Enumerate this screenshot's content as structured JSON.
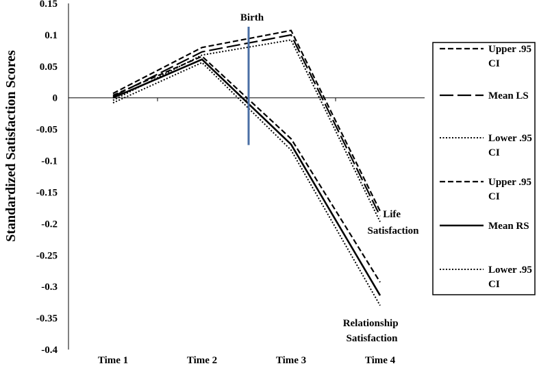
{
  "chart_data": {
    "type": "line",
    "categories": [
      "Time 1",
      "Time 2",
      "Time 3",
      "Time 4"
    ],
    "ylabel": "Standardized Satisfaction Scores",
    "ylim": [
      -0.4,
      0.15
    ],
    "yticks": [
      "0.15",
      "0.1",
      "0.05",
      "0",
      "-0.05",
      "-0.1",
      "-0.15",
      "-0.2",
      "-0.25",
      "-0.3",
      "-0.35",
      "-0.4"
    ],
    "ytick_values": [
      0.15,
      0.1,
      0.05,
      0,
      -0.05,
      -0.1,
      -0.15,
      -0.2,
      -0.25,
      -0.3,
      -0.35,
      -0.4
    ],
    "series": [
      {
        "name": "Upper .95 CI",
        "name_lines": [
          "Upper .95",
          "CI"
        ],
        "group": "LS",
        "style": "dash-short",
        "values": [
          0.007,
          0.08,
          0.107,
          -0.18
        ]
      },
      {
        "name": "Mean LS",
        "name_lines": [
          "Mean LS"
        ],
        "group": "LS",
        "style": "dash-long",
        "values": [
          0.002,
          0.073,
          0.1,
          -0.188
        ]
      },
      {
        "name": "Lower .95 CI",
        "name_lines": [
          "Lower .95",
          "CI"
        ],
        "group": "LS",
        "style": "dotted",
        "values": [
          -0.004,
          0.068,
          0.092,
          -0.197
        ]
      },
      {
        "name": "Upper .95 CI",
        "name_lines": [
          "Upper .95",
          "CI"
        ],
        "group": "RS",
        "style": "dash-short",
        "values": [
          0.004,
          0.066,
          -0.065,
          -0.293
        ]
      },
      {
        "name": "Mean RS",
        "name_lines": [
          "Mean RS"
        ],
        "group": "RS",
        "style": "solid",
        "values": [
          0.0,
          0.061,
          -0.074,
          -0.314
        ]
      },
      {
        "name": "Lower .95 CI",
        "name_lines": [
          "Lower .95",
          "CI"
        ],
        "group": "RS",
        "style": "dotted",
        "values": [
          -0.008,
          0.056,
          -0.083,
          -0.33
        ]
      }
    ],
    "annotations": {
      "birth": "Birth",
      "life_satisfaction": [
        "Life",
        "Satisfaction"
      ],
      "relationship_satisfaction": [
        "Relationship",
        "Satisfaction"
      ]
    },
    "birth_marker": {
      "between": [
        "Time 2",
        "Time 3"
      ],
      "y_range": [
        -0.075,
        0.113
      ],
      "color": "#4a6fa5"
    },
    "legend": "right",
    "grid": false
  }
}
